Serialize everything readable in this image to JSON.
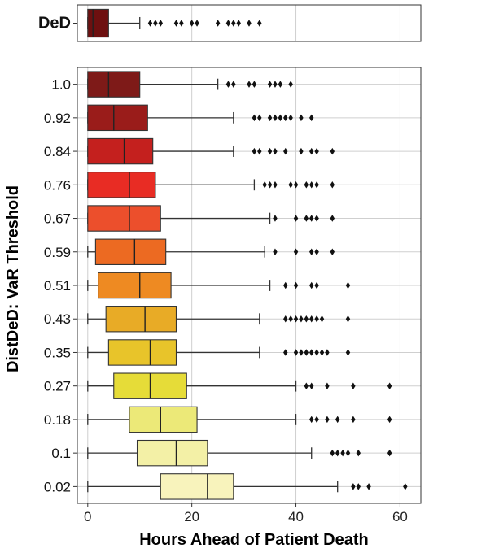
{
  "chart_data": [
    {
      "type": "box",
      "panel": "top",
      "categories": [
        "DeD"
      ],
      "boxes": [
        {
          "label": "DeD",
          "color": "#6e1010",
          "min": 0,
          "q1": 0,
          "median": 1,
          "q3": 4,
          "max": 10,
          "outliers": [
            12,
            13,
            14,
            17,
            18,
            20,
            21,
            25,
            27,
            28,
            29,
            31,
            33
          ]
        }
      ],
      "xlim": [
        -2,
        64
      ],
      "grid": true
    },
    {
      "type": "box",
      "panel": "main",
      "ylabel": "DistDeD: VaR Threshold",
      "xlabel": "Hours Ahead of Patient Death",
      "xticks": [
        0,
        20,
        40,
        60
      ],
      "xlim": [
        -2,
        64
      ],
      "grid": true,
      "categories": [
        "1.0",
        "0.92",
        "0.84",
        "0.76",
        "0.67",
        "0.59",
        "0.51",
        "0.43",
        "0.35",
        "0.27",
        "0.18",
        "0.1",
        "0.02"
      ],
      "boxes": [
        {
          "label": "1.0",
          "color": "#7e1a18",
          "min": 0,
          "q1": 0,
          "median": 4,
          "q3": 10,
          "max": 25,
          "outliers": [
            27,
            28,
            31,
            32,
            35,
            36,
            37,
            39
          ]
        },
        {
          "label": "0.92",
          "color": "#9a1c1a",
          "min": 0,
          "q1": 0,
          "median": 5,
          "q3": 11.5,
          "max": 28,
          "outliers": [
            32,
            33,
            35,
            36,
            37,
            38,
            39,
            41,
            43
          ]
        },
        {
          "label": "0.84",
          "color": "#c4201e",
          "min": 0,
          "q1": 0,
          "median": 7,
          "q3": 12.5,
          "max": 28,
          "outliers": [
            32,
            33,
            35,
            36,
            38,
            41,
            43,
            44,
            47
          ]
        },
        {
          "label": "0.76",
          "color": "#e82c24",
          "min": 0,
          "q1": 0,
          "median": 8,
          "q3": 13,
          "max": 32,
          "outliers": [
            34,
            35,
            36,
            39,
            40,
            42,
            43,
            44,
            47
          ]
        },
        {
          "label": "0.67",
          "color": "#ec4f2c",
          "min": 0,
          "q1": 0,
          "median": 8,
          "q3": 14,
          "max": 35,
          "outliers": [
            36,
            40,
            42,
            43,
            44,
            47
          ]
        },
        {
          "label": "0.59",
          "color": "#ec6a22",
          "min": 0,
          "q1": 1.5,
          "median": 9,
          "q3": 15,
          "max": 34,
          "outliers": [
            36,
            40,
            43,
            44,
            47
          ]
        },
        {
          "label": "0.51",
          "color": "#ee8a22",
          "min": 0,
          "q1": 2,
          "median": 10,
          "q3": 16,
          "max": 35,
          "outliers": [
            38,
            40,
            43,
            44,
            50
          ]
        },
        {
          "label": "0.43",
          "color": "#e8ab26",
          "min": 0,
          "q1": 3.5,
          "median": 11,
          "q3": 17,
          "max": 33,
          "outliers": [
            38,
            39,
            40,
            41,
            42,
            43,
            44,
            45,
            50
          ]
        },
        {
          "label": "0.35",
          "color": "#e8c42a",
          "min": 0,
          "q1": 4,
          "median": 12,
          "q3": 17,
          "max": 33,
          "outliers": [
            38,
            40,
            41,
            42,
            43,
            44,
            45,
            46,
            50
          ]
        },
        {
          "label": "0.27",
          "color": "#e6dc38",
          "min": 0,
          "q1": 5,
          "median": 12,
          "q3": 19,
          "max": 40,
          "outliers": [
            42,
            43,
            46,
            51,
            58
          ]
        },
        {
          "label": "0.18",
          "color": "#ece978",
          "min": 0,
          "q1": 8,
          "median": 14,
          "q3": 21,
          "max": 40,
          "outliers": [
            43,
            44,
            46,
            48,
            51,
            58
          ]
        },
        {
          "label": "0.1",
          "color": "#f3f0a6",
          "min": 0,
          "q1": 9.5,
          "median": 17,
          "q3": 23,
          "max": 43,
          "outliers": [
            47,
            48,
            49,
            50,
            52,
            58
          ]
        },
        {
          "label": "0.02",
          "color": "#f8f3bc",
          "min": 0,
          "q1": 14,
          "median": 23,
          "q3": 28,
          "max": 48,
          "outliers": [
            51,
            52,
            54,
            61
          ]
        }
      ]
    }
  ]
}
